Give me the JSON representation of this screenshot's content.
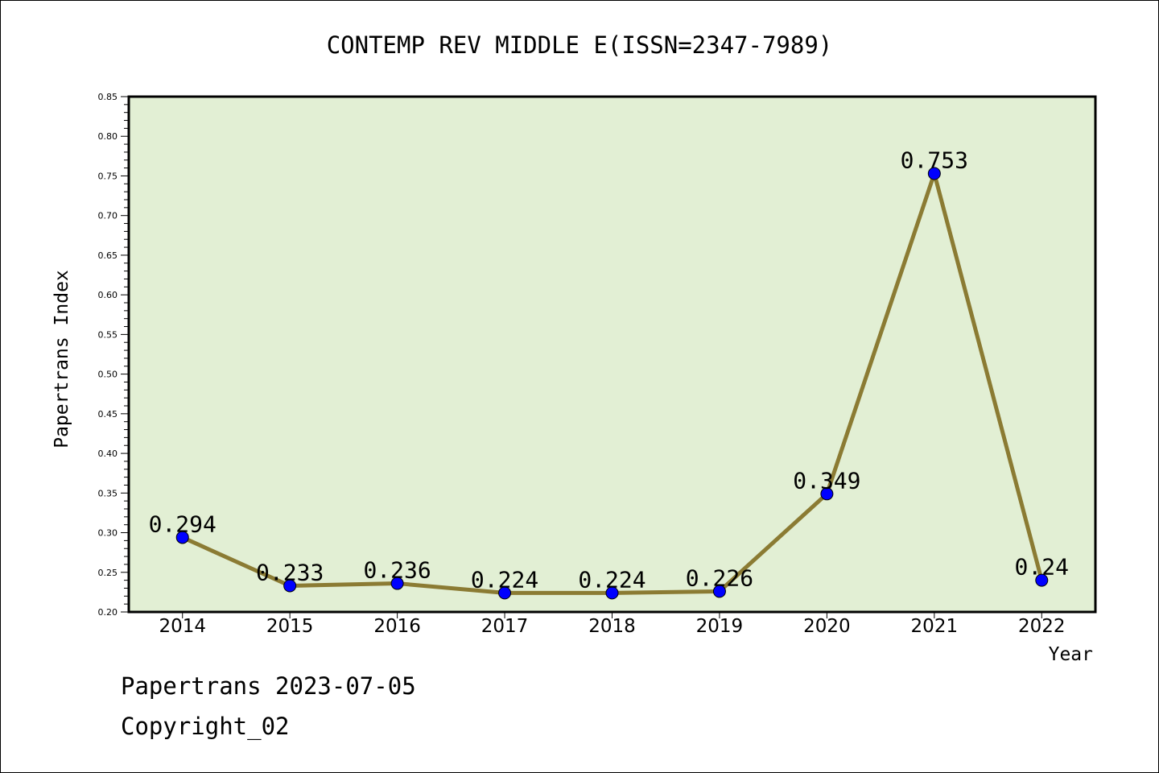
{
  "chart_data": {
    "type": "line",
    "title": "CONTEMP REV MIDDLE E(ISSN=2347-7989)",
    "xlabel": "Year",
    "ylabel": "Papertrans Index",
    "categories": [
      "2014",
      "2015",
      "2016",
      "2017",
      "2018",
      "2019",
      "2020",
      "2021",
      "2022"
    ],
    "values": [
      0.294,
      0.233,
      0.236,
      0.224,
      0.224,
      0.226,
      0.349,
      0.753,
      0.24
    ],
    "data_labels": [
      "0.294",
      "0.233",
      "0.236",
      "0.224",
      "0.224",
      "0.226",
      "0.349",
      "0.753",
      "0.24"
    ],
    "ylim": [
      0.2,
      0.85
    ],
    "yticks": [
      "0.20",
      "0.25",
      "0.30",
      "0.35",
      "0.40",
      "0.45",
      "0.50",
      "0.55",
      "0.60",
      "0.65",
      "0.70",
      "0.75",
      "0.80",
      "0.85"
    ],
    "grid": false,
    "colors": {
      "plot_bg": "#E2EFD4",
      "line": "#8B7B33",
      "marker": "#0000FF"
    }
  },
  "footer": {
    "line1": "Papertrans 2023-07-05",
    "line2": "Copyright_02"
  }
}
